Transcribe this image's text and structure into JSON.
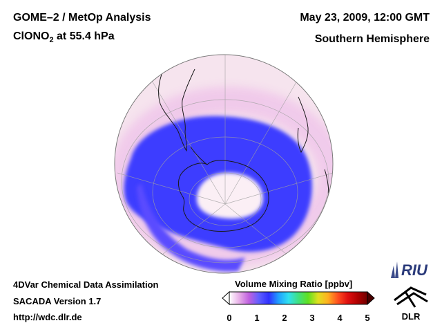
{
  "header": {
    "title_line1": "GOME–2 / MetOp Analysis",
    "species_prefix": "ClONO",
    "species_sub": "2",
    "species_suffix": " at 55.4 hPa",
    "date": "May 23, 2009, 12:00 GMT",
    "region": "Southern Hemisphere"
  },
  "footer": {
    "line1": "4DVar Chemical Data Assimilation",
    "line2": "SACADA Version 1.7",
    "line3": "http://wdc.dlr.de"
  },
  "colorbar": {
    "title": "Volume Mixing Ratio [ppbv]",
    "ticks": [
      "0",
      "1",
      "2",
      "3",
      "4",
      "5"
    ],
    "colors": [
      "#ffffff",
      "#e8b0e8",
      "#c060e0",
      "#6060ff",
      "#3030ff",
      "#20a0ff",
      "#30e0f0",
      "#40e080",
      "#60e020",
      "#e0e020",
      "#ffb020",
      "#ff5020",
      "#e01010",
      "#b00000",
      "#700000"
    ],
    "over_color": "#4a0000",
    "under_color": "#ffffff"
  },
  "map_colors": {
    "background": "#f6e4ee",
    "low": "#f3d2ea",
    "band": "#3d3dff",
    "band_light": "#7a6cff",
    "vortex_core": "#fbeff5",
    "coast": "#1a1a1a",
    "grid": "#a0a0a0"
  },
  "logos": {
    "riu": "RIU",
    "dlr": "DLR"
  }
}
